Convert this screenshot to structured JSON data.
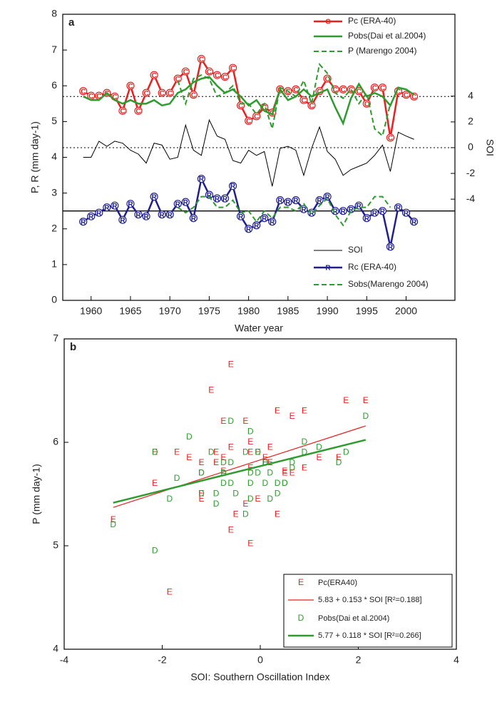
{
  "chart_data": [
    {
      "type": "line",
      "panel_label": "a",
      "xlabel": "Water year",
      "ylabel": "P, R (mm day-1)",
      "y2label": "SOI",
      "xlim": [
        1956.4,
        2006.2
      ],
      "xticks": [
        1960,
        1965,
        1970,
        1975,
        1980,
        1985,
        1990,
        1995,
        2000
      ],
      "ylim": [
        0,
        8
      ],
      "yticks": [
        0,
        1,
        2,
        3,
        4,
        5,
        6,
        7,
        8
      ],
      "y2lim": [
        -11.86,
        10.36
      ],
      "y2ticks": [
        -4,
        -2,
        0,
        2,
        4
      ],
      "hlines": [
        {
          "value": 5.7,
          "style": "dotted"
        },
        {
          "value": 0,
          "axis": "y2",
          "style": "dotted"
        },
        {
          "value": 2.5,
          "style": "solid"
        }
      ],
      "x": [
        1959,
        1960,
        1961,
        1962,
        1963,
        1964,
        1965,
        1966,
        1967,
        1968,
        1969,
        1970,
        1971,
        1972,
        1973,
        1974,
        1975,
        1976,
        1977,
        1978,
        1979,
        1980,
        1981,
        1982,
        1983,
        1984,
        1985,
        1986,
        1987,
        1988,
        1989,
        1990,
        1991,
        1992,
        1993,
        1994,
        1995,
        1996,
        1997,
        1998,
        1999,
        2000,
        2001
      ],
      "series": [
        {
          "name": "Pc (ERA-40)",
          "color": "#e8201f",
          "marker": "C",
          "width": 2.5,
          "values": [
            5.85,
            5.72,
            5.72,
            5.8,
            5.7,
            5.3,
            6.0,
            5.3,
            5.8,
            6.3,
            5.8,
            5.8,
            6.2,
            6.4,
            5.75,
            6.75,
            6.4,
            6.3,
            6.25,
            6.5,
            5.45,
            5.02,
            5.15,
            5.4,
            5.25,
            5.9,
            5.85,
            5.9,
            5.6,
            5.45,
            5.85,
            6.2,
            5.9,
            5.9,
            5.9,
            5.85,
            5.5,
            5.95,
            5.95,
            4.55,
            5.85,
            5.75,
            5.7
          ]
        },
        {
          "name": "Pobs(Dai et al.2004)",
          "color": "#2e9b2e",
          "width": 2.5,
          "values": [
            5.7,
            5.6,
            5.6,
            5.8,
            5.6,
            5.5,
            5.6,
            5.5,
            5.5,
            5.6,
            5.45,
            5.5,
            5.8,
            5.9,
            6.1,
            6.2,
            6.25,
            6.0,
            5.8,
            5.9,
            5.7,
            5.45,
            5.6,
            5.3,
            5.2,
            5.9,
            5.6,
            5.7,
            5.9,
            5.7,
            5.8,
            5.9,
            5.4,
            4.95,
            5.65,
            6.05,
            5.7,
            5.8,
            5.7,
            5.45,
            5.95,
            5.9,
            5.75
          ]
        },
        {
          "name": "P (Marengo 2004)",
          "color": "#2e9b2e",
          "dash": true,
          "width": 2,
          "values": [
            null,
            null,
            null,
            null,
            null,
            null,
            null,
            null,
            null,
            null,
            null,
            null,
            6.15,
            5.5,
            6.2,
            6.3,
            6.2,
            5.7,
            5.8,
            6.0,
            5.5,
            5.5,
            5.2,
            5.5,
            4.8,
            5.95,
            5.85,
            5.7,
            6.15,
            5.5,
            6.6,
            6.35,
            5.8,
            5.65,
            5.9,
            5.5,
            5.8,
            4.8,
            4.6,
            5.5,
            null,
            null,
            null
          ]
        },
        {
          "name": "SOI",
          "color": "#000000",
          "axis": "y2",
          "width": 1,
          "values": [
            -0.75,
            -0.75,
            0.5,
            0.1,
            0.5,
            0.35,
            -0.2,
            -0.5,
            -1.2,
            0.35,
            0.2,
            -0.9,
            -0.75,
            1.75,
            -0.2,
            -0.6,
            2.15,
            0.9,
            0.65,
            -1.0,
            -1.2,
            -0.2,
            -0.6,
            -0.3,
            -3.0,
            -0.05,
            0.1,
            -0.2,
            -2.15,
            -0.05,
            1.6,
            -0.3,
            -0.9,
            -2.15,
            -1.7,
            -1.45,
            -1.2,
            -0.6,
            0.2,
            -1.85,
            1.2,
            0.9,
            0.65
          ]
        },
        {
          "name": "Rc (ERA-40)",
          "color": "#1f1f8f",
          "marker": "R",
          "width": 2.5,
          "values": [
            2.2,
            2.35,
            2.45,
            2.6,
            2.65,
            2.25,
            2.7,
            2.4,
            2.35,
            2.9,
            2.4,
            2.4,
            2.7,
            2.75,
            2.3,
            3.4,
            2.95,
            2.85,
            2.85,
            3.2,
            2.35,
            2.0,
            2.1,
            2.3,
            2.2,
            2.8,
            2.75,
            2.8,
            2.55,
            2.45,
            2.8,
            2.9,
            2.5,
            2.5,
            2.55,
            2.65,
            2.3,
            2.45,
            2.5,
            1.5,
            2.6,
            2.45,
            2.2
          ]
        },
        {
          "name": "Sobs(Marengo 2004)",
          "color": "#2e9b2e",
          "dash": true,
          "width": 2,
          "values": [
            null,
            null,
            null,
            null,
            null,
            null,
            null,
            null,
            null,
            null,
            null,
            null,
            2.6,
            2.45,
            2.6,
            2.9,
            2.9,
            2.6,
            2.6,
            2.8,
            2.45,
            2.5,
            2.2,
            2.5,
            2.3,
            2.6,
            2.6,
            2.5,
            2.7,
            2.4,
            2.65,
            2.85,
            2.4,
            2.1,
            2.5,
            2.6,
            2.6,
            2.9,
            2.9,
            2.6,
            null,
            null,
            null
          ]
        }
      ]
    },
    {
      "type": "scatter",
      "panel_label": "b",
      "xlabel": "SOI: Southern Oscillation Index",
      "ylabel": "P (mm day-1)",
      "xlim": [
        -4,
        4
      ],
      "xticks": [
        -4,
        -2,
        0,
        2,
        4
      ],
      "ylim": [
        4,
        7
      ],
      "yticks": [
        4,
        5,
        6,
        7
      ],
      "x": [
        -0.75,
        -0.75,
        0.5,
        0.1,
        0.5,
        0.35,
        -0.2,
        -0.5,
        -1.2,
        0.35,
        0.2,
        -0.9,
        -0.75,
        1.75,
        -0.2,
        -0.6,
        2.15,
        0.9,
        0.65,
        -1.0,
        -1.2,
        -0.2,
        -0.6,
        -0.3,
        -3.0,
        -0.05,
        0.1,
        -0.2,
        -2.15,
        -0.05,
        1.6,
        -0.3,
        -0.9,
        -2.15,
        -1.7,
        -1.45,
        -1.2,
        -0.6,
        0.2,
        -1.85,
        1.2,
        0.9,
        0.65
      ],
      "series": [
        {
          "name": "Pc(ERA40)",
          "color": "#e8201f",
          "marker": "E",
          "values": [
            5.85,
            5.72,
            5.72,
            5.8,
            5.7,
            5.3,
            6.0,
            5.3,
            5.8,
            6.3,
            5.8,
            5.8,
            6.2,
            6.4,
            5.75,
            6.75,
            6.4,
            6.3,
            6.25,
            6.5,
            5.45,
            5.02,
            5.15,
            5.4,
            5.25,
            5.9,
            5.85,
            5.9,
            5.6,
            5.45,
            5.85,
            6.2,
            5.9,
            5.9,
            5.9,
            5.85,
            5.5,
            5.95,
            5.95,
            4.55,
            5.85,
            5.75,
            5.7
          ],
          "fit": {
            "intercept": 5.83,
            "slope": 0.153,
            "label": "5.83 + 0.153 * SOI [R²=0.188]",
            "width": 1.2
          }
        },
        {
          "name": "Pobs(Dai et al.2004)",
          "color": "#2e9b2e",
          "marker": "D",
          "values": [
            5.7,
            5.6,
            5.6,
            5.8,
            5.6,
            5.5,
            5.6,
            5.5,
            5.5,
            5.6,
            5.45,
            5.5,
            5.8,
            5.9,
            6.1,
            6.2,
            6.25,
            6.0,
            5.8,
            5.9,
            5.7,
            5.45,
            5.6,
            5.3,
            5.2,
            5.9,
            5.6,
            5.7,
            5.9,
            5.7,
            5.8,
            5.9,
            5.4,
            4.95,
            5.65,
            6.05,
            5.7,
            5.8,
            5.7,
            5.45,
            5.95,
            5.9,
            5.75
          ],
          "fit": {
            "intercept": 5.77,
            "slope": 0.118,
            "label": "5.77 + 0.118 * SOI [R²=0.266]",
            "width": 2.5
          }
        }
      ]
    }
  ]
}
